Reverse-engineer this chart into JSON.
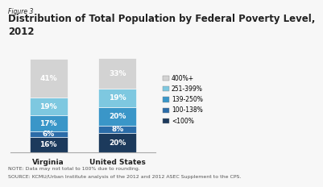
{
  "title": "Distribution of Total Population by Federal Poverty Level,\n2012",
  "figure_label": "Figure 3",
  "categories": [
    "Virginia",
    "United States"
  ],
  "segments": [
    {
      "label": "<100%",
      "color": "#1c3a5c",
      "values": [
        16,
        20
      ]
    },
    {
      "label": "100-138%",
      "color": "#2b6ca8",
      "values": [
        6,
        8
      ]
    },
    {
      "label": "139-250%",
      "color": "#3a96c8",
      "values": [
        17,
        20
      ]
    },
    {
      "label": "251-399%",
      "color": "#7ec8e0",
      "values": [
        19,
        19
      ]
    },
    {
      "label": "400%+",
      "color": "#d3d3d3",
      "values": [
        41,
        33
      ]
    }
  ],
  "note1": "NOTE: Data may not total to 100% due to rounding.",
  "note2": "SOURCE: KCMU/Urban Institute analysis of the 2012 and 2012 ASEC Supplement to the CPS.",
  "bar_width": 0.55,
  "ylim": [
    0,
    100
  ],
  "text_color": "#222222",
  "label_fontsize": 6.5,
  "title_fontsize": 8.5,
  "figure_label_fontsize": 5.5,
  "note_fontsize": 4.5,
  "legend_fontsize": 5.5,
  "tick_fontsize": 6.5,
  "background_color": "#f7f7f7"
}
